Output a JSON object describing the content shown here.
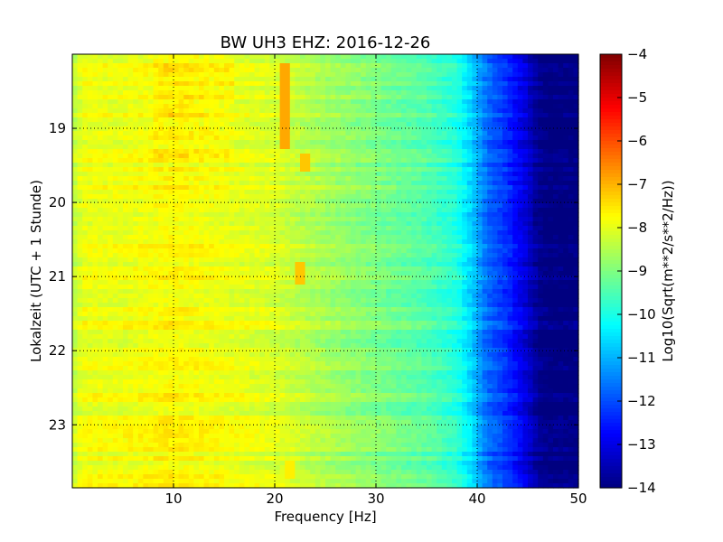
{
  "chart_data": {
    "type": "heatmap",
    "title": "BW UH3 EHZ: 2016-12-26",
    "xlabel": "Frequency [Hz]",
    "ylabel": "Lokalzeit (UTC + 1 Stunde)",
    "xlim": [
      0,
      50
    ],
    "ylim": [
      18.0,
      23.85
    ],
    "y_inverted": true,
    "x_ticks": [
      10,
      20,
      30,
      40,
      50
    ],
    "y_ticks": [
      19,
      20,
      21,
      22,
      23
    ],
    "grid": true,
    "colormap": "jet",
    "colorbar": {
      "label": "Log10(Sqrt(m**2/s**2/Hz))",
      "range": [
        -14,
        -4
      ],
      "ticks": [
        -4,
        -5,
        -6,
        -7,
        -8,
        -9,
        -10,
        -11,
        -12,
        -13,
        -14
      ]
    },
    "spectrum_profile": {
      "frequency_hz": [
        0,
        1,
        5,
        10,
        15,
        20,
        25,
        30,
        35,
        38,
        39.5,
        41,
        43,
        45,
        46,
        47,
        50
      ],
      "log10_amplitude": [
        -8.4,
        -7.9,
        -7.9,
        -7.7,
        -7.9,
        -8.1,
        -8.6,
        -9.0,
        -9.4,
        -9.9,
        -10.7,
        -11.7,
        -12.3,
        -13.2,
        -13.8,
        -14.0,
        -14.0
      ]
    },
    "spectral_lines": [
      {
        "frequency_hz": 21.0,
        "time_start": 18.1,
        "time_end": 19.3,
        "log10_amplitude": -6.9
      },
      {
        "frequency_hz": 22.8,
        "time_start": 19.35,
        "time_end": 19.6,
        "log10_amplitude": -7.2
      },
      {
        "frequency_hz": 22.5,
        "time_start": 20.8,
        "time_end": 21.1,
        "log10_amplitude": -7.2
      },
      {
        "frequency_hz": 21.5,
        "time_start": 23.5,
        "time_end": 23.75,
        "log10_amplitude": -7.6
      }
    ]
  }
}
